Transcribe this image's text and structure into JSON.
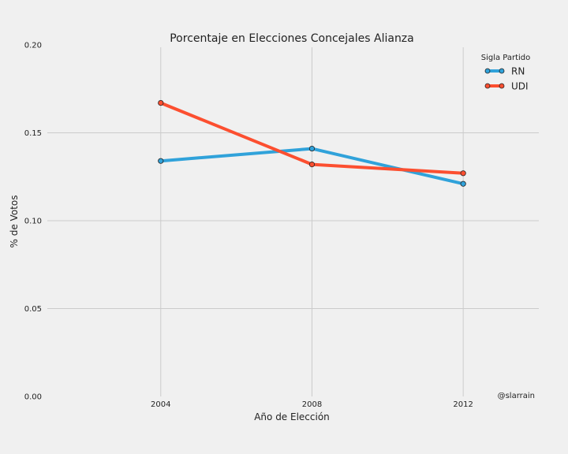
{
  "chart_data": {
    "type": "line",
    "title": "Porcentaje en Elecciones Concejales Alianza",
    "xlabel": "Año de Elección",
    "ylabel": "% de Votos",
    "x": [
      2004,
      2008,
      2012
    ],
    "x_tick_labels": [
      "2004",
      "2008",
      "2012"
    ],
    "xlim": [
      2001.0,
      2014.0
    ],
    "ylim": [
      0.0,
      0.2
    ],
    "y_ticks": [
      0.0,
      0.05,
      0.1,
      0.15,
      0.2
    ],
    "y_tick_labels": [
      "0.00",
      "0.05",
      "0.10",
      "0.15",
      "0.20"
    ],
    "grid": true,
    "legend_title": "Sigla Partido",
    "legend_position": "top-right",
    "series": [
      {
        "name": "RN",
        "color": "#30a2da",
        "values": [
          0.134,
          0.141,
          0.121
        ]
      },
      {
        "name": "UDI",
        "color": "#fc4f30",
        "values": [
          0.167,
          0.132,
          0.127
        ]
      }
    ],
    "annotation": "@slarrain"
  }
}
